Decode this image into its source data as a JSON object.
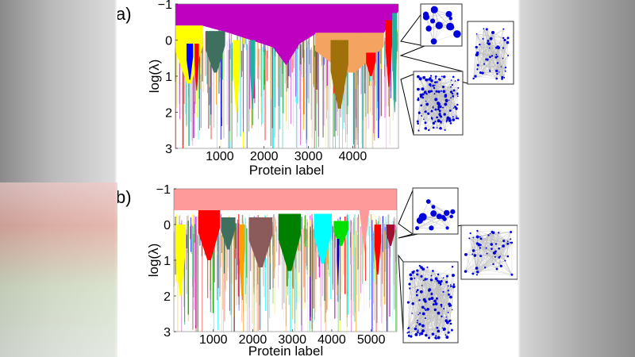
{
  "chart_data": [
    {
      "panel_label": "a)",
      "type": "area",
      "xlabel": "Protein label",
      "ylabel": "log(λ)",
      "xlim": [
        0,
        5030
      ],
      "ylim": [
        -1,
        3
      ],
      "y_inverted": true,
      "xticks": [
        1000,
        2000,
        3000,
        4000
      ],
      "yticks": [
        -1,
        0,
        1,
        2,
        3
      ],
      "ytick_labels": [
        "−1",
        "0",
        "1",
        "2",
        "3"
      ],
      "grid": false,
      "communities": [
        {
          "color": "#c000c0",
          "polygon": [
            [
              0,
              -1
            ],
            [
              5030,
              -1
            ],
            [
              5030,
              -0.8
            ],
            [
              4700,
              -0.2
            ],
            [
              3200,
              -0.2
            ],
            [
              2800,
              0.1
            ],
            [
              2500,
              0.7
            ],
            [
              2200,
              0.2
            ],
            [
              1200,
              -0.2
            ],
            [
              600,
              -0.4
            ],
            [
              0,
              -0.4
            ]
          ]
        },
        {
          "color": "#ffff00",
          "start": 0,
          "end": 620,
          "top": -0.4,
          "bottom": 1.2
        },
        {
          "color": "#3f6f5f",
          "start": 680,
          "end": 1120,
          "top": -0.25,
          "bottom": 0.9
        },
        {
          "color": "#0000ff",
          "start": 250,
          "end": 400,
          "top": 0.1,
          "bottom": 1.1
        },
        {
          "color": "#ff0000",
          "start": 430,
          "end": 530,
          "top": 0.1,
          "bottom": 1.4
        },
        {
          "color": "#ffff00",
          "start": 1300,
          "end": 1460,
          "top": 0.0,
          "bottom": 2.0
        },
        {
          "color": "#20b2a0",
          "start": 1680,
          "end": 1800,
          "top": 0.0,
          "bottom": 1.9
        },
        {
          "color": "#f4a460",
          "start": 3150,
          "end": 4700,
          "top": -0.2,
          "bottom": 0.9
        },
        {
          "color": "#a0700a",
          "start": 3500,
          "end": 3900,
          "top": 0.0,
          "bottom": 1.9
        },
        {
          "color": "#ff0000",
          "start": 4300,
          "end": 4520,
          "top": 0.35,
          "bottom": 1.0
        },
        {
          "color": "#ff0000",
          "start": 4740,
          "end": 4890,
          "top": -0.55,
          "bottom": 1.3
        },
        {
          "color": "#20b2a0",
          "start": 4890,
          "end": 5000,
          "top": -0.75,
          "bottom": 2.0
        }
      ],
      "insets": [
        "network-small",
        "network-medium",
        "network-large"
      ]
    },
    {
      "panel_label": "b)",
      "type": "area",
      "xlabel": "Protein label",
      "ylabel": "log(λ)",
      "xlim": [
        0,
        5650
      ],
      "ylim": [
        -1,
        3
      ],
      "y_inverted": true,
      "xticks": [
        1000,
        2000,
        3000,
        4000,
        5000
      ],
      "yticks": [
        -1,
        0,
        1,
        2,
        3
      ],
      "ytick_labels": [
        "−1",
        "0",
        "1",
        "2",
        "3"
      ],
      "grid": false,
      "communities": [
        {
          "color": "#ff9a9a",
          "polygon": [
            [
              0,
              -1
            ],
            [
              5650,
              -1
            ],
            [
              5650,
              -0.4
            ],
            [
              4950,
              -0.4
            ],
            [
              4830,
              0.8
            ],
            [
              4700,
              -0.4
            ],
            [
              0,
              -0.4
            ]
          ]
        },
        {
          "color": "#ff0000",
          "start": 620,
          "end": 1170,
          "top": -0.4,
          "bottom": 1.0
        },
        {
          "color": "#ffff00",
          "start": 40,
          "end": 300,
          "top": 0.0,
          "bottom": 2.0
        },
        {
          "color": "#3f6f5f",
          "start": 1200,
          "end": 1560,
          "top": -0.2,
          "bottom": 0.7
        },
        {
          "color": "#ffa000",
          "start": 1650,
          "end": 1800,
          "top": 0.0,
          "bottom": 2.0
        },
        {
          "color": "#8b5a5a",
          "start": 1900,
          "end": 2500,
          "top": -0.2,
          "bottom": 1.2
        },
        {
          "color": "#008000",
          "start": 2650,
          "end": 3220,
          "top": -0.3,
          "bottom": 1.3
        },
        {
          "color": "#00ffff",
          "start": 3550,
          "end": 4000,
          "top": -0.3,
          "bottom": 1.1
        },
        {
          "color": "#00e000",
          "start": 4050,
          "end": 4420,
          "top": -0.1,
          "bottom": 0.6
        },
        {
          "color": "#0000cc",
          "start": 4130,
          "end": 4190,
          "top": 0.4,
          "bottom": 1.7
        },
        {
          "color": "#ff0000",
          "start": 5080,
          "end": 5250,
          "top": 0.0,
          "bottom": 1.4
        },
        {
          "color": "#a01030",
          "start": 5380,
          "end": 5600,
          "top": 0.0,
          "bottom": 0.6
        }
      ],
      "insets": [
        "network-small",
        "network-medium",
        "network-large"
      ]
    }
  ],
  "noise_palette": [
    "#ff0000",
    "#0000ff",
    "#00aa00",
    "#c000c0",
    "#ffff00",
    "#00ffff",
    "#f4a460",
    "#20b2a0",
    "#8b5a5a",
    "#808080",
    "#ffa000",
    "#3f6f5f",
    "#dda0dd",
    "#f0e68c"
  ]
}
